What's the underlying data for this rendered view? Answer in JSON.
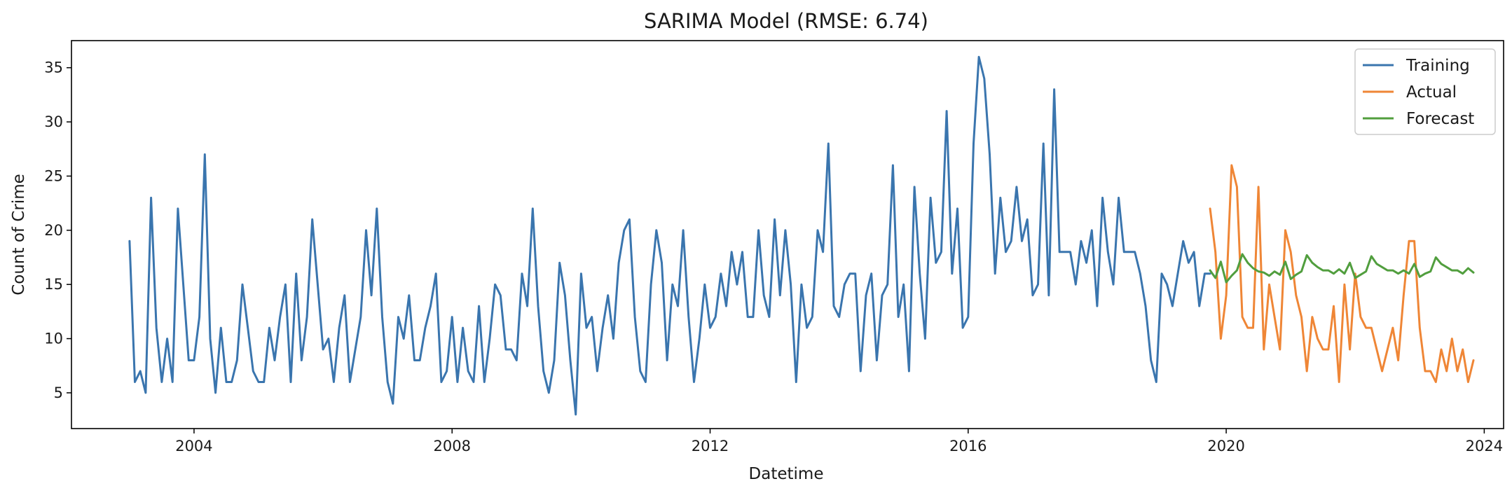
{
  "chart_data": {
    "type": "line",
    "title": "SARIMA Model (RMSE: 6.74)",
    "xlabel": "Datetime",
    "ylabel": "Count of Crime",
    "xlim": [
      2002.1,
      2024.3
    ],
    "ylim": [
      1.7,
      37.5
    ],
    "x_ticks": [
      2004,
      2008,
      2012,
      2016,
      2020,
      2024
    ],
    "y_ticks": [
      5,
      10,
      15,
      20,
      25,
      30,
      35
    ],
    "grid": false,
    "legend_position": "top-right",
    "series": [
      {
        "name": "Training",
        "color": "#3a75ae",
        "start": 2003.0,
        "step": 0.0833333,
        "values": [
          19,
          6,
          7,
          5,
          23,
          11,
          6,
          10,
          6,
          22,
          15,
          8,
          8,
          12,
          27,
          10,
          5,
          11,
          6,
          6,
          8,
          15,
          11,
          7,
          6,
          6,
          11,
          8,
          12,
          15,
          6,
          16,
          8,
          12,
          21,
          15,
          9,
          10,
          6,
          11,
          14,
          6,
          9,
          12,
          20,
          14,
          22,
          12,
          6,
          4,
          12,
          10,
          14,
          8,
          8,
          11,
          13,
          16,
          6,
          7,
          12,
          6,
          11,
          7,
          6,
          13,
          6,
          10,
          15,
          14,
          9,
          9,
          8,
          16,
          13,
          22,
          13,
          7,
          5,
          8,
          17,
          14,
          8,
          3,
          16,
          11,
          12,
          7,
          11,
          14,
          10,
          17,
          20,
          21,
          12,
          7,
          6,
          15,
          20,
          17,
          8,
          15,
          13,
          20,
          12,
          6,
          10,
          15,
          11,
          12,
          16,
          13,
          18,
          15,
          18,
          12,
          12,
          20,
          14,
          12,
          21,
          14,
          20,
          15,
          6,
          15,
          11,
          12,
          20,
          18,
          28,
          13,
          12,
          15,
          16,
          16,
          7,
          14,
          16,
          8,
          14,
          15,
          26,
          12,
          15,
          7,
          24,
          16,
          10,
          23,
          17,
          18,
          31,
          16,
          22,
          11,
          12,
          28,
          36,
          34,
          27,
          16,
          23,
          18,
          19,
          24,
          19,
          21,
          14,
          15,
          28,
          14,
          33,
          18,
          18,
          18,
          15,
          19,
          17,
          20,
          13,
          23,
          18,
          15,
          23,
          18,
          18,
          18,
          16,
          13,
          8,
          6,
          16,
          15,
          13,
          16,
          19,
          17,
          18,
          13,
          16,
          16
        ]
      },
      {
        "name": "Actual",
        "color": "#ef8636",
        "start": 2019.75,
        "step": 0.0833333,
        "values": [
          22,
          18,
          10,
          14,
          26,
          24,
          12,
          11,
          11,
          24,
          9,
          15,
          12,
          9,
          20,
          18,
          14,
          12,
          7,
          12,
          10,
          9,
          9,
          13,
          6,
          15,
          9,
          16,
          12,
          11,
          11,
          9,
          7,
          9,
          11,
          8,
          14,
          19,
          19,
          11,
          7,
          7,
          6,
          9,
          7,
          10,
          7,
          9,
          6,
          8
        ]
      },
      {
        "name": "Forecast",
        "color": "#519e3e",
        "start": 2019.75,
        "step": 0.0833333,
        "values": [
          16.3,
          15.6,
          17.1,
          15.2,
          15.8,
          16.3,
          17.8,
          17.0,
          16.5,
          16.2,
          16.1,
          15.8,
          16.2,
          15.9,
          17.1,
          15.5,
          15.9,
          16.2,
          17.7,
          17.0,
          16.6,
          16.3,
          16.3,
          16.0,
          16.4,
          16.0,
          17.0,
          15.6,
          15.9,
          16.2,
          17.6,
          16.9,
          16.6,
          16.3,
          16.3,
          16.0,
          16.3,
          16.0,
          16.9,
          15.7,
          16.0,
          16.2,
          17.5,
          16.9,
          16.6,
          16.3,
          16.3,
          16.0,
          16.5,
          16.1
        ]
      }
    ]
  }
}
